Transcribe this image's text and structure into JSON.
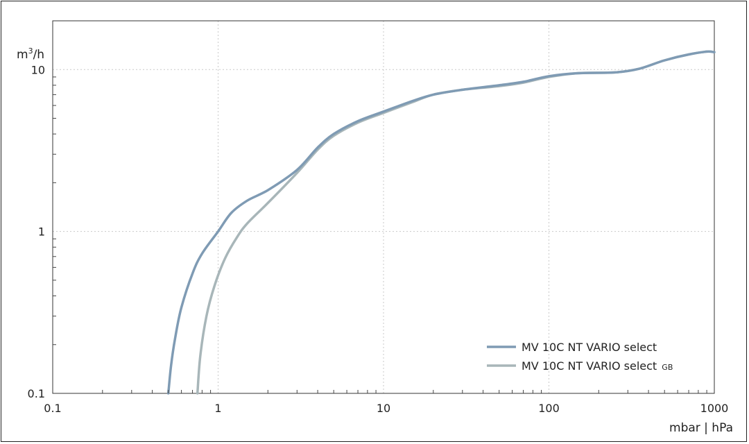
{
  "chart_data": {
    "type": "line",
    "xscale": "log",
    "yscale": "log",
    "xlim": [
      0.1,
      1000
    ],
    "ylim": [
      0.1,
      20
    ],
    "grid": true,
    "legend_position": "bottom-right",
    "xlabel": "mbar | hPa",
    "ylabel": {
      "base": "m",
      "sup": "3",
      "rest": "/h"
    },
    "x_ticks": [
      {
        "value": 0.1,
        "label": "0.1"
      },
      {
        "value": 1,
        "label": "1"
      },
      {
        "value": 10,
        "label": "10"
      },
      {
        "value": 100,
        "label": "100"
      },
      {
        "value": 1000,
        "label": "1000"
      }
    ],
    "y_ticks": [
      {
        "value": 0.1,
        "label": "0.1"
      },
      {
        "value": 1,
        "label": "1"
      },
      {
        "value": 10,
        "label": "10"
      }
    ],
    "series": [
      {
        "name": "MV 10C NT VARIO select",
        "name_suffix": "",
        "color": "#7f9bb4",
        "points": [
          [
            0.5,
            0.1
          ],
          [
            0.52,
            0.15
          ],
          [
            0.55,
            0.22
          ],
          [
            0.6,
            0.34
          ],
          [
            0.7,
            0.55
          ],
          [
            0.8,
            0.73
          ],
          [
            1.0,
            1.0
          ],
          [
            1.2,
            1.3
          ],
          [
            1.5,
            1.55
          ],
          [
            2.0,
            1.8
          ],
          [
            3.0,
            2.4
          ],
          [
            4.0,
            3.3
          ],
          [
            5.0,
            4.0
          ],
          [
            7.0,
            4.8
          ],
          [
            10,
            5.5
          ],
          [
            15,
            6.4
          ],
          [
            20,
            7.0
          ],
          [
            30,
            7.5
          ],
          [
            50,
            8.0
          ],
          [
            70,
            8.4
          ],
          [
            100,
            9.1
          ],
          [
            150,
            9.5
          ],
          [
            250,
            9.6
          ],
          [
            350,
            10.1
          ],
          [
            500,
            11.4
          ],
          [
            700,
            12.4
          ],
          [
            900,
            12.9
          ],
          [
            1000,
            12.8
          ]
        ]
      },
      {
        "name": "MV 10C NT VARIO select",
        "name_suffix": "GB",
        "color": "#a8b6b9",
        "points": [
          [
            0.75,
            0.1
          ],
          [
            0.78,
            0.17
          ],
          [
            0.85,
            0.3
          ],
          [
            0.95,
            0.46
          ],
          [
            1.1,
            0.68
          ],
          [
            1.3,
            0.92
          ],
          [
            1.5,
            1.12
          ],
          [
            2.0,
            1.5
          ],
          [
            3.0,
            2.3
          ],
          [
            4.0,
            3.2
          ],
          [
            5.0,
            3.9
          ],
          [
            7.0,
            4.7
          ],
          [
            10,
            5.4
          ],
          [
            15,
            6.3
          ],
          [
            20,
            7.0
          ],
          [
            30,
            7.5
          ],
          [
            50,
            7.9
          ],
          [
            70,
            8.3
          ],
          [
            100,
            9.0
          ],
          [
            150,
            9.5
          ],
          [
            250,
            9.6
          ],
          [
            350,
            10.1
          ],
          [
            500,
            11.4
          ],
          [
            700,
            12.4
          ],
          [
            900,
            12.9
          ],
          [
            1000,
            12.8
          ]
        ]
      }
    ]
  }
}
